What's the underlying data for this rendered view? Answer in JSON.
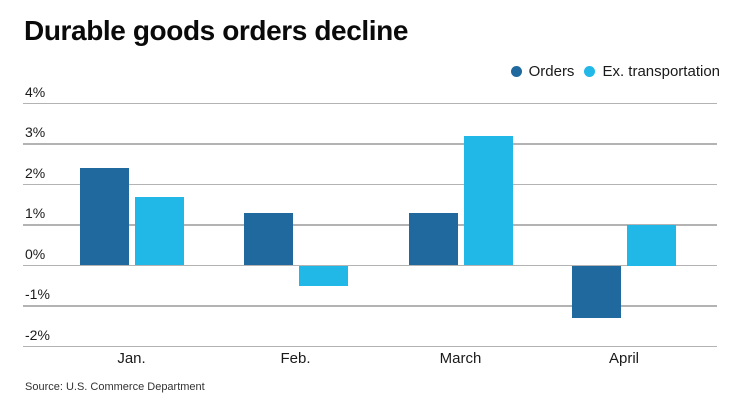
{
  "chart_data": {
    "type": "bar",
    "title": "Durable goods orders decline",
    "categories": [
      "Jan.",
      "Feb.",
      "March",
      "April"
    ],
    "series": [
      {
        "name": "Orders",
        "color": "#1f699e",
        "values": [
          2.4,
          1.3,
          1.3,
          -1.3
        ]
      },
      {
        "name": "Ex. transportation",
        "color": "#21b8e8",
        "values": [
          1.7,
          -0.5,
          3.2,
          1.0
        ]
      }
    ],
    "ylabel": "",
    "xlabel": "",
    "ylim": [
      -2,
      4
    ],
    "yticks": [
      4,
      3,
      2,
      1,
      0,
      -1,
      -2
    ],
    "ytick_suffix": "%",
    "grid": true,
    "gridline_color": "#b3b3b3",
    "legend_position": "top-right",
    "source": "Source: U.S. Commerce Department"
  }
}
